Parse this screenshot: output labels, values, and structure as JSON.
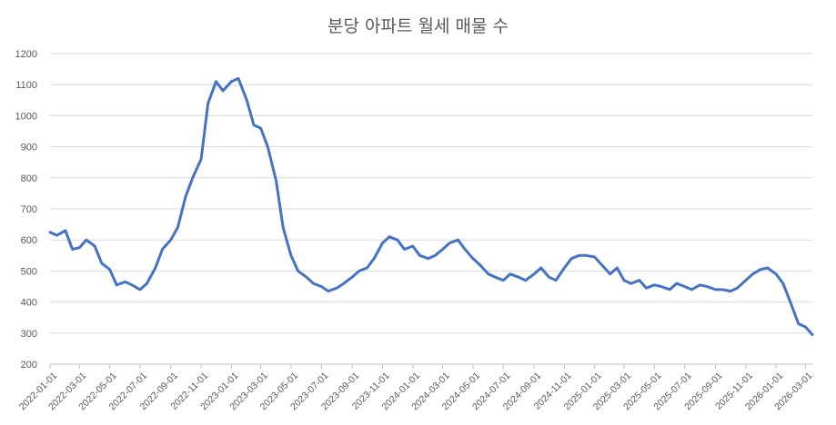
{
  "chart_data": {
    "type": "line",
    "title": "분당 아파트 월세 매물 수",
    "xlabel": "",
    "ylabel": "",
    "ylim": [
      200,
      1200
    ],
    "yticks": [
      200,
      300,
      400,
      500,
      600,
      700,
      800,
      900,
      1000,
      1100,
      1200
    ],
    "xlim": [
      "2022-01-01",
      "2026-03-15"
    ],
    "xticks": [
      "2022-01-01",
      "2022-03-01",
      "2022-05-01",
      "2022-07-01",
      "2022-09-01",
      "2022-11-01",
      "2023-01-01",
      "2023-03-01",
      "2023-05-01",
      "2023-07-01",
      "2023-09-01",
      "2023-11-01",
      "2024-01-01",
      "2024-03-01",
      "2024-05-01",
      "2024-07-01",
      "2024-09-01",
      "2024-11-01",
      "2025-01-01",
      "2025-03-01",
      "2025-05-01",
      "2025-07-01",
      "2025-09-01",
      "2025-11-01",
      "2026-01-01",
      "2026-03-01"
    ],
    "grid": true,
    "legend": "none",
    "colors": {
      "line": "#4472c4",
      "grid": "#d9d9d9",
      "text": "#595959"
    },
    "series": [
      {
        "x": [
          "2022-01-01",
          "2022-01-15",
          "2022-02-01",
          "2022-02-15",
          "2022-03-01",
          "2022-03-15",
          "2022-04-01",
          "2022-04-15",
          "2022-05-01",
          "2022-05-15",
          "2022-06-01",
          "2022-06-15",
          "2022-07-01",
          "2022-07-15",
          "2022-08-01",
          "2022-08-15",
          "2022-09-01",
          "2022-09-15",
          "2022-10-01",
          "2022-10-15",
          "2022-11-01",
          "2022-11-15",
          "2022-12-01",
          "2022-12-15",
          "2023-01-01",
          "2023-01-15",
          "2023-02-01",
          "2023-02-15",
          "2023-03-01",
          "2023-03-15",
          "2023-04-01",
          "2023-04-15",
          "2023-05-01",
          "2023-05-15",
          "2023-06-01",
          "2023-06-15",
          "2023-07-01",
          "2023-07-15",
          "2023-08-01",
          "2023-08-15",
          "2023-09-01",
          "2023-09-15",
          "2023-10-01",
          "2023-10-15",
          "2023-11-01",
          "2023-11-15",
          "2023-12-01",
          "2023-12-15",
          "2024-01-01",
          "2024-01-15",
          "2024-02-01",
          "2024-02-15",
          "2024-03-01",
          "2024-03-15",
          "2024-04-01",
          "2024-04-15",
          "2024-05-01",
          "2024-05-15",
          "2024-06-01",
          "2024-06-15",
          "2024-07-01",
          "2024-07-15",
          "2024-08-01",
          "2024-08-15",
          "2024-09-01",
          "2024-09-15",
          "2024-10-01",
          "2024-10-15",
          "2024-11-01",
          "2024-11-15",
          "2024-12-01",
          "2024-12-15",
          "2025-01-01",
          "2025-01-15",
          "2025-02-01",
          "2025-02-15",
          "2025-03-01",
          "2025-03-15",
          "2025-04-01",
          "2025-04-15",
          "2025-05-01",
          "2025-05-15",
          "2025-06-01",
          "2025-06-15",
          "2025-07-01",
          "2025-07-15",
          "2025-08-01",
          "2025-08-15",
          "2025-09-01",
          "2025-09-15",
          "2025-10-01",
          "2025-10-15",
          "2025-11-01",
          "2025-11-15",
          "2025-12-01",
          "2025-12-15",
          "2026-01-01",
          "2026-01-15",
          "2026-02-01",
          "2026-02-15",
          "2026-03-01",
          "2026-03-15"
        ],
        "values": [
          625,
          615,
          630,
          570,
          575,
          600,
          580,
          525,
          505,
          455,
          465,
          455,
          440,
          460,
          510,
          570,
          600,
          640,
          740,
          800,
          860,
          1040,
          1110,
          1080,
          1110,
          1120,
          1050,
          970,
          960,
          900,
          790,
          640,
          550,
          500,
          480,
          460,
          450,
          435,
          445,
          460,
          480,
          500,
          510,
          540,
          590,
          610,
          600,
          570,
          580,
          550,
          540,
          550,
          570,
          590,
          600,
          570,
          540,
          520,
          490,
          480,
          470,
          490,
          480,
          470,
          490,
          510,
          480,
          470,
          510,
          540,
          550,
          550,
          545,
          520,
          490,
          510,
          470,
          460,
          470,
          445,
          455,
          450,
          440,
          460,
          450,
          440,
          455,
          450,
          440,
          440,
          435,
          445,
          470,
          490,
          505,
          510,
          490,
          460,
          390,
          330,
          320,
          295
        ]
      }
    ]
  }
}
